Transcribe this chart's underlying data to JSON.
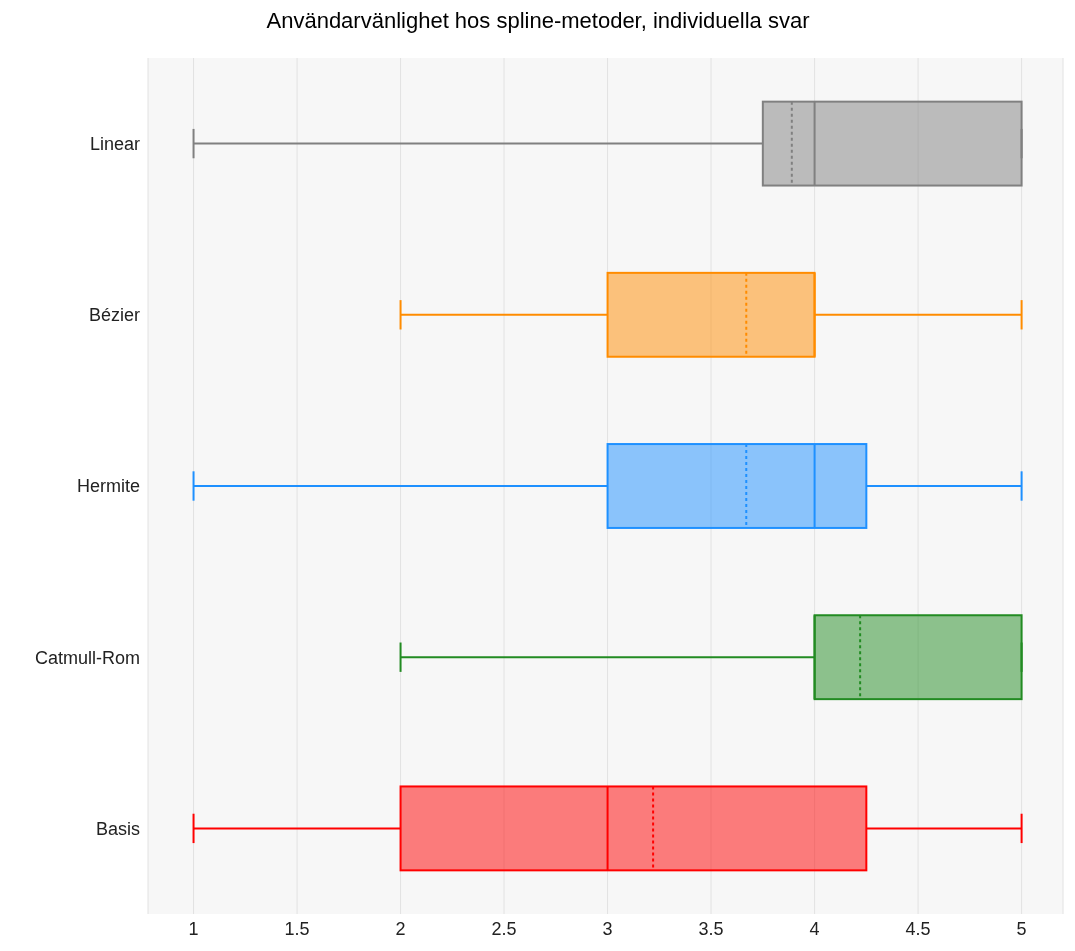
{
  "chart_data": {
    "type": "box",
    "title": "Användarvänlighet hos spline-metoder, individuella svar",
    "orientation": "horizontal",
    "categories": [
      "Linear",
      "Bézier",
      "Hermite",
      "Catmull-Rom",
      "Basis"
    ],
    "boxes": [
      {
        "low": 1,
        "q1": 3.75,
        "median": 4,
        "q3": 5,
        "high": 5,
        "mean": 3.89
      },
      {
        "low": 2,
        "q1": 3,
        "median": 4,
        "q3": 4,
        "high": 5,
        "mean": 3.67
      },
      {
        "low": 1,
        "q1": 3,
        "median": 4,
        "q3": 4.25,
        "high": 5,
        "mean": 3.67
      },
      {
        "low": 2,
        "q1": 4,
        "median": 4,
        "q3": 5,
        "high": 5,
        "mean": 4.22
      },
      {
        "low": 1,
        "q1": 2,
        "median": 3,
        "q3": 4.25,
        "high": 5,
        "mean": 3.22
      }
    ],
    "colors": [
      "#808080",
      "#ff8c00",
      "#1e90ff",
      "#228b22",
      "#ff0000"
    ],
    "xlim": [
      0.78,
      5.2
    ],
    "xticks": [
      1,
      1.5,
      2,
      2.5,
      3,
      3.5,
      4,
      4.5,
      5
    ],
    "grid": "x"
  }
}
